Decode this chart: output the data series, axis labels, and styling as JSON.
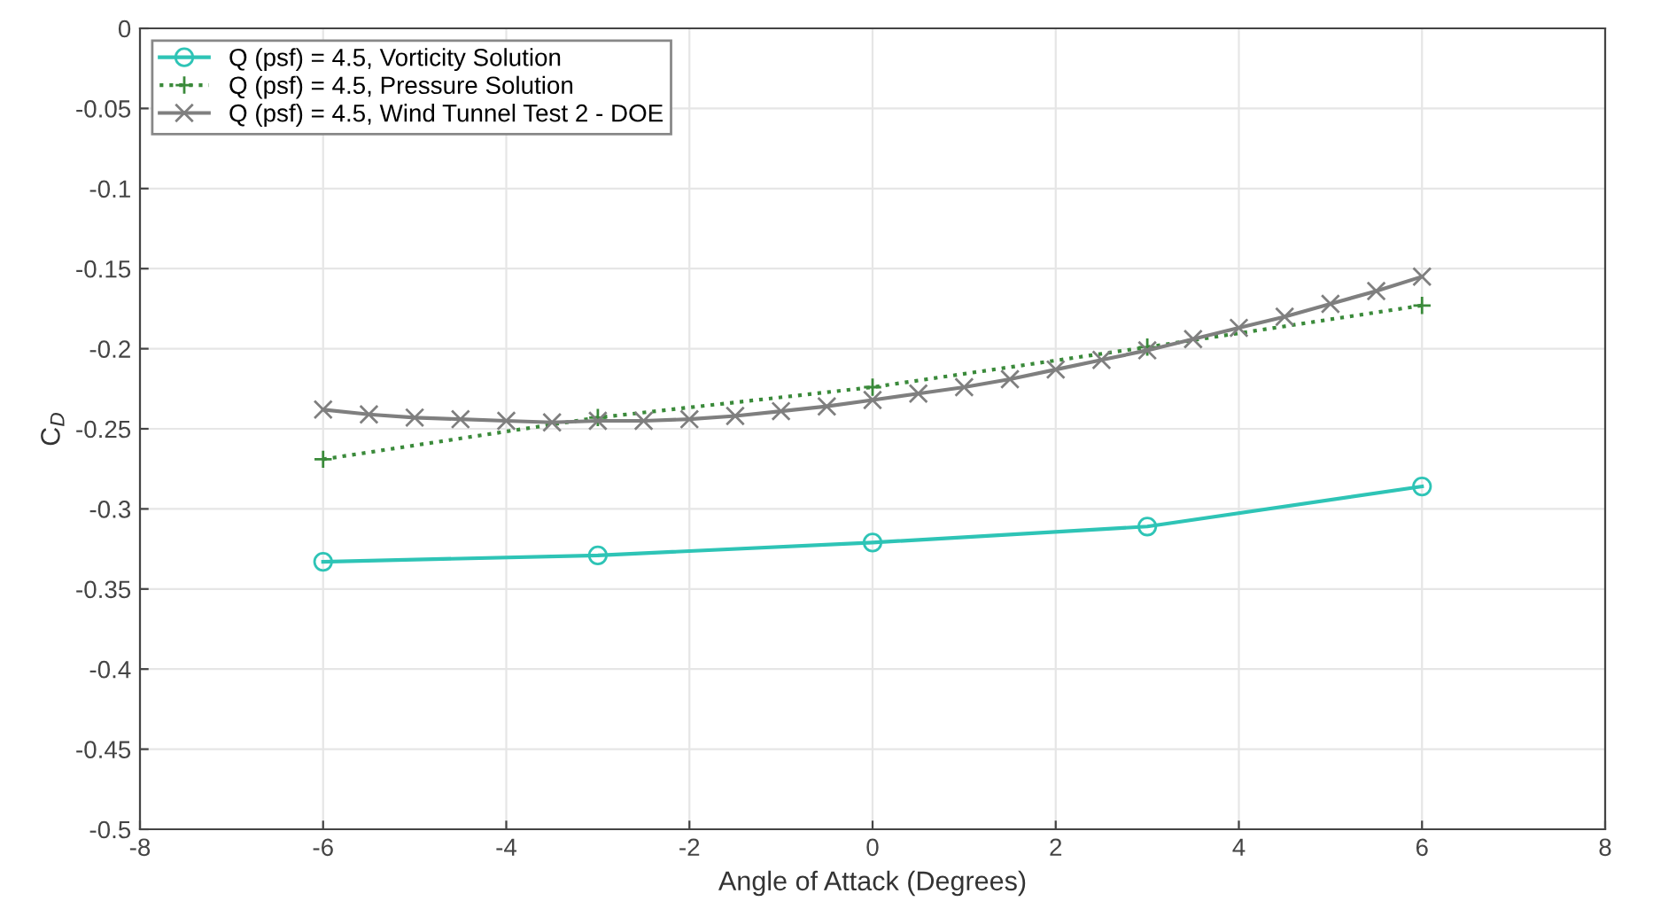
{
  "chart_data": {
    "type": "line",
    "xlabel": "Angle of Attack (Degrees)",
    "ylabel": "C$_{D}$",
    "xlim": [
      -8,
      8
    ],
    "xticks": [
      -8,
      -6,
      -4,
      -2,
      0,
      2,
      4,
      6,
      8
    ],
    "ylim": [
      -0.5,
      0
    ],
    "yticks": [
      -0.5,
      -0.45,
      -0.4,
      -0.35,
      -0.3,
      -0.25,
      -0.2,
      -0.15,
      -0.1,
      -0.05,
      0
    ],
    "grid": true,
    "legend": "top left",
    "series": [
      {
        "name": "Q (psf) = 4.5, Vorticity Solution",
        "color": "#2ec4b6",
        "marker": "circle",
        "line_style": "solid",
        "x": [
          -6,
          -3,
          0,
          3,
          6
        ],
        "values": [
          -0.333,
          -0.329,
          -0.321,
          -0.311,
          -0.286
        ]
      },
      {
        "name": "Q (psf) = 4.5, Pressure Solution",
        "color": "#3a8a3a",
        "marker": "cross",
        "line_style": "dotted",
        "x": [
          -6,
          -3,
          0,
          3,
          6
        ],
        "values": [
          -0.269,
          -0.243,
          -0.224,
          -0.199,
          -0.173
        ]
      },
      {
        "name": "Q (psf) = 4.5, Wind Tunnel Test 2 - DOE",
        "color": "#7f7f7f",
        "marker": "x",
        "line_style": "solid",
        "x": [
          -6,
          -5.5,
          -5,
          -4.5,
          -4,
          -3.5,
          -3,
          -2.5,
          -2,
          -1.5,
          -1,
          -0.5,
          0,
          0.5,
          1,
          1.5,
          2,
          2.5,
          3,
          3.5,
          4,
          4.5,
          5,
          5.5,
          6
        ],
        "values": [
          -0.238,
          -0.241,
          -0.243,
          -0.244,
          -0.245,
          -0.246,
          -0.245,
          -0.245,
          -0.244,
          -0.242,
          -0.239,
          -0.236,
          -0.232,
          -0.228,
          -0.224,
          -0.219,
          -0.213,
          -0.207,
          -0.201,
          -0.194,
          -0.187,
          -0.18,
          -0.172,
          -0.164,
          -0.155
        ]
      }
    ]
  }
}
